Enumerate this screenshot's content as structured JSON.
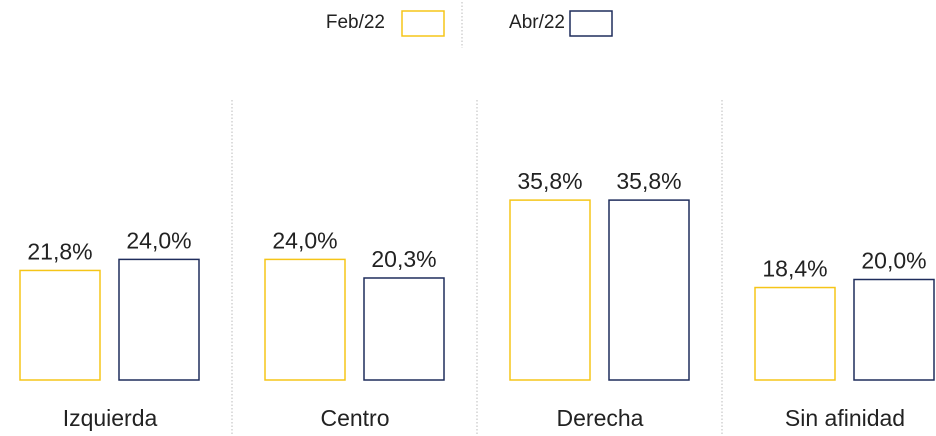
{
  "chart_data": {
    "type": "bar",
    "categories": [
      "Izquierda",
      "Centro",
      "Derecha",
      "Sin afinidad"
    ],
    "series": [
      {
        "name": "Feb/22",
        "color": "#f5c518",
        "values": [
          21.8,
          24.0,
          35.8,
          18.4
        ],
        "value_labels": [
          "21,8%",
          "24,0%",
          "35,8%",
          "18,4%"
        ]
      },
      {
        "name": "Abr/22",
        "color": "#1f2d5c",
        "values": [
          24.0,
          20.3,
          35.8,
          20.0
        ],
        "value_labels": [
          "24,0%",
          "20,3%",
          "35,8%",
          "20,0%"
        ]
      }
    ],
    "ylim": [
      0,
      40
    ],
    "legend": "top"
  }
}
